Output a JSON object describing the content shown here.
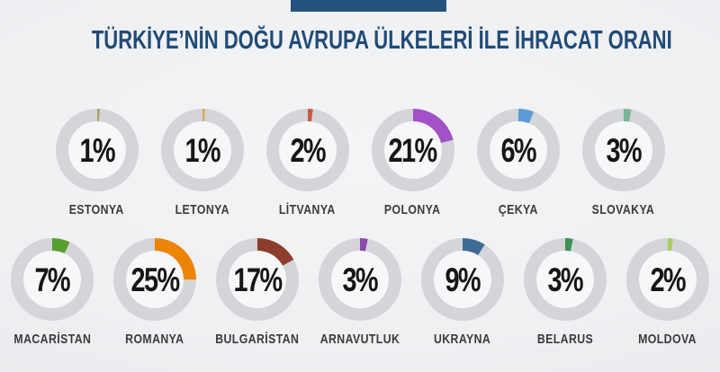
{
  "header": {
    "accent_color": "#24527e"
  },
  "chart_data": {
    "type": "pie",
    "variant": "donut-multiples",
    "title": "TÜRKİYE’NİN DOĞU AVRUPA ÜLKELERİ İLE İHRACAT ORANI",
    "unit": "%",
    "ring_color": "#d3d5d9",
    "value_color": "#161616",
    "title_color": "#1f4b78",
    "layout": {
      "row_1_indexes": [
        0,
        1,
        2,
        3,
        4,
        5
      ],
      "row_2_indexes": [
        6,
        7,
        8,
        9,
        10,
        11,
        12
      ],
      "segments_start": "12-o-clock-clockwise"
    },
    "items": [
      {
        "label": "ESTONYA",
        "value": 1,
        "pct_label": "1%",
        "color": "#b0a269"
      },
      {
        "label": "LETONYA",
        "value": 1,
        "pct_label": "1%",
        "color": "#ddaa55"
      },
      {
        "label": "LİTVANYA",
        "value": 2,
        "pct_label": "2%",
        "color": "#c75b42"
      },
      {
        "label": "POLONYA",
        "value": 21,
        "pct_label": "21%",
        "color": "#a351c9"
      },
      {
        "label": "ÇEKYA",
        "value": 6,
        "pct_label": "6%",
        "color": "#5b9bd5"
      },
      {
        "label": "SLOVAKYA",
        "value": 3,
        "pct_label": "3%",
        "color": "#79b595"
      },
      {
        "label": "MACARİSTAN",
        "value": 7,
        "pct_label": "7%",
        "color": "#579e2e"
      },
      {
        "label": "ROMANYA",
        "value": 25,
        "pct_label": "25%",
        "color": "#ec8406"
      },
      {
        "label": "BULGARİSTAN",
        "value": 17,
        "pct_label": "17%",
        "color": "#8e3c2c"
      },
      {
        "label": "ARNAVUTLUK",
        "value": 3,
        "pct_label": "3%",
        "color": "#8c4aad"
      },
      {
        "label": "UKRAYNA",
        "value": 9,
        "pct_label": "9%",
        "color": "#3e6b96"
      },
      {
        "label": "BELARUS",
        "value": 3,
        "pct_label": "3%",
        "color": "#3f9054"
      },
      {
        "label": "MOLDOVA",
        "value": 2,
        "pct_label": "2%",
        "color": "#a9cc61"
      }
    ]
  }
}
